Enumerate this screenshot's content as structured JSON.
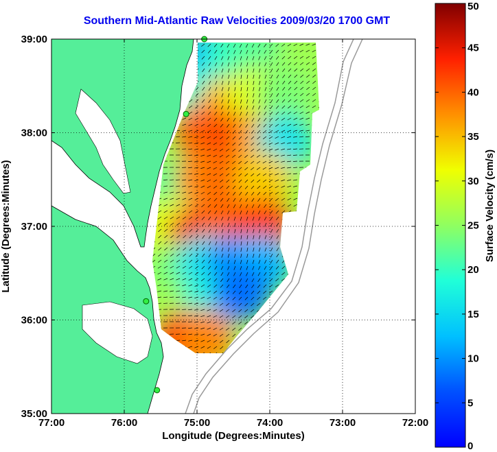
{
  "chart_data": {
    "type": "heatmap",
    "title": "Southern Mid-Atlantic Raw Velocities 2009/03/20 1700 GMT",
    "xlabel": "Longitude (Degrees:Minutes)",
    "ylabel": "Latitude (Degrees:Minutes)",
    "colorbar_label": "Surface Velocity (cm/s)",
    "x_ticks": [
      "77:00",
      "76:00",
      "75:00",
      "74:00",
      "73:00",
      "72:00"
    ],
    "y_ticks": [
      "39:00",
      "38:00",
      "37:00",
      "36:00",
      "35:00"
    ],
    "colorbar_ticks": [
      "0",
      "5",
      "10",
      "15",
      "20",
      "25",
      "30",
      "35",
      "40",
      "45",
      "50"
    ],
    "xlim": [
      -77,
      -72
    ],
    "ylim": [
      35,
      39
    ],
    "clim": [
      0,
      50
    ],
    "grid": true,
    "colormap": "jet",
    "title_color": "#0000ee",
    "land_color": "#55ee99",
    "coverage_cells": [
      {
        "lon": -74.85,
        "lat": 38.8,
        "v": 12
      },
      {
        "lon": -74.5,
        "lat": 38.8,
        "v": 20
      },
      {
        "lon": -74.1,
        "lat": 38.8,
        "v": 22
      },
      {
        "lon": -73.6,
        "lat": 38.7,
        "v": 26
      },
      {
        "lon": -74.9,
        "lat": 38.4,
        "v": 18
      },
      {
        "lon": -74.6,
        "lat": 38.3,
        "v": 35
      },
      {
        "lon": -74.2,
        "lat": 38.4,
        "v": 30
      },
      {
        "lon": -73.8,
        "lat": 38.4,
        "v": 24
      },
      {
        "lon": -74.9,
        "lat": 38.0,
        "v": 40
      },
      {
        "lon": -74.5,
        "lat": 37.9,
        "v": 42
      },
      {
        "lon": -74.1,
        "lat": 37.9,
        "v": 36
      },
      {
        "lon": -73.8,
        "lat": 37.9,
        "v": 16
      },
      {
        "lon": -75.3,
        "lat": 37.4,
        "v": 22
      },
      {
        "lon": -74.9,
        "lat": 37.5,
        "v": 38
      },
      {
        "lon": -74.5,
        "lat": 37.5,
        "v": 40
      },
      {
        "lon": -74.1,
        "lat": 37.5,
        "v": 34
      },
      {
        "lon": -75.4,
        "lat": 37.0,
        "v": 30
      },
      {
        "lon": -75.0,
        "lat": 36.9,
        "v": 44
      },
      {
        "lon": -74.6,
        "lat": 37.0,
        "v": 40
      },
      {
        "lon": -74.1,
        "lat": 37.0,
        "v": 42
      },
      {
        "lon": -75.3,
        "lat": 36.5,
        "v": 24
      },
      {
        "lon": -74.9,
        "lat": 36.6,
        "v": 16
      },
      {
        "lon": -74.5,
        "lat": 36.6,
        "v": 10
      },
      {
        "lon": -74.1,
        "lat": 36.6,
        "v": 12
      },
      {
        "lon": -75.3,
        "lat": 36.1,
        "v": 26
      },
      {
        "lon": -74.8,
        "lat": 36.2,
        "v": 18
      },
      {
        "lon": -74.4,
        "lat": 36.3,
        "v": 8
      },
      {
        "lon": -75.2,
        "lat": 35.8,
        "v": 44
      },
      {
        "lon": -74.9,
        "lat": 35.8,
        "v": 38
      }
    ],
    "stations": [
      {
        "lon": -74.9,
        "lat": 39.0
      },
      {
        "lon": -75.15,
        "lat": 38.2
      },
      {
        "lon": -75.7,
        "lat": 36.2
      },
      {
        "lon": -75.55,
        "lat": 35.25
      }
    ]
  }
}
